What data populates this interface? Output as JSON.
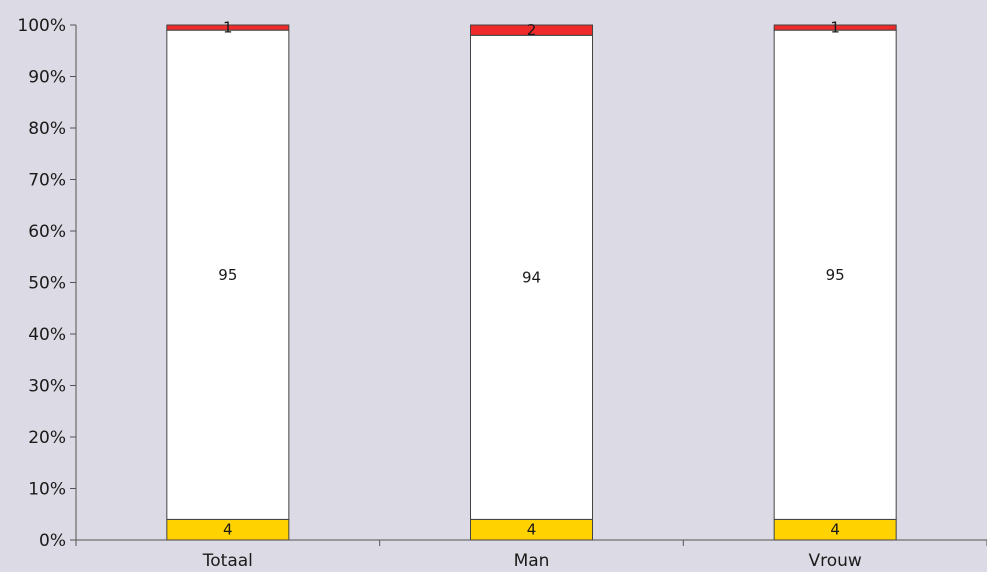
{
  "chart_data": {
    "type": "bar",
    "stacked": true,
    "percent": true,
    "categories": [
      "Totaal",
      "Man",
      "Vrouw"
    ],
    "series": [
      {
        "key": "yellow",
        "values": [
          4,
          4,
          4
        ],
        "color": "#ffd200",
        "labels": [
          "4",
          "4",
          "4"
        ]
      },
      {
        "key": "white",
        "values": [
          95,
          94,
          95
        ],
        "color": "#ffffff",
        "labels": [
          "95",
          "94",
          "95"
        ]
      },
      {
        "key": "red",
        "values": [
          1,
          2,
          1
        ],
        "color": "#ee2a2a",
        "labels": [
          "1",
          "2",
          "1"
        ]
      }
    ],
    "yticks": [
      "0%",
      "10%",
      "20%",
      "30%",
      "40%",
      "50%",
      "60%",
      "70%",
      "80%",
      "90%",
      "100%"
    ],
    "ylim": [
      0,
      100
    ],
    "grid": false,
    "legend": "none",
    "title": "",
    "xlabel": "",
    "ylabel": ""
  }
}
